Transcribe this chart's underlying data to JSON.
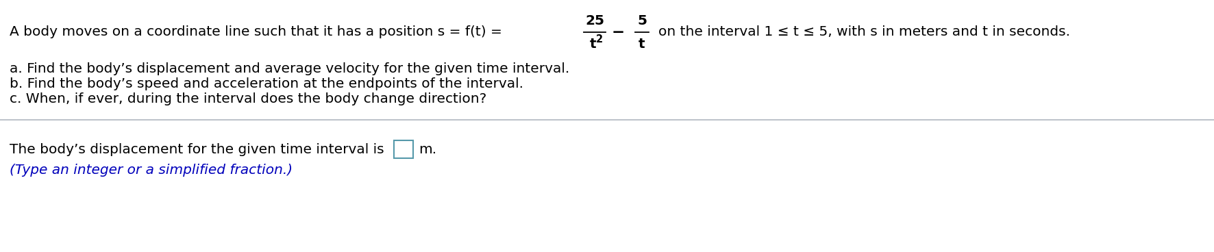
{
  "bg_color": "#ffffff",
  "line1_prefix": "A body moves on a coordinate line such that it has a position s = f(t) =",
  "line1_suffix": "on the interval 1 ≤ t ≤ 5, with s in meters and t in seconds.",
  "fraction_num": "25",
  "fraction_den": "t",
  "fraction_den_sup": "2",
  "minus": "−",
  "frac2_num": "5",
  "frac2_den": "t",
  "line_a": "a. Find the body’s displacement and average velocity for the given time interval.",
  "line_b": "b. Find the body’s speed and acceleration at the endpoints of the interval.",
  "line_c": "c. When, if ever, during the interval does the body change direction?",
  "answer_prefix": "The body’s displacement for the given time interval is",
  "answer_suffix": "m.",
  "hint_text": "(Type an integer or a simplified fraction.)",
  "hint_color": "#0000bb",
  "divider_color": "#b0b8c0",
  "text_color": "#000000",
  "font_size_main": 14.5,
  "box_color": "#5599aa"
}
